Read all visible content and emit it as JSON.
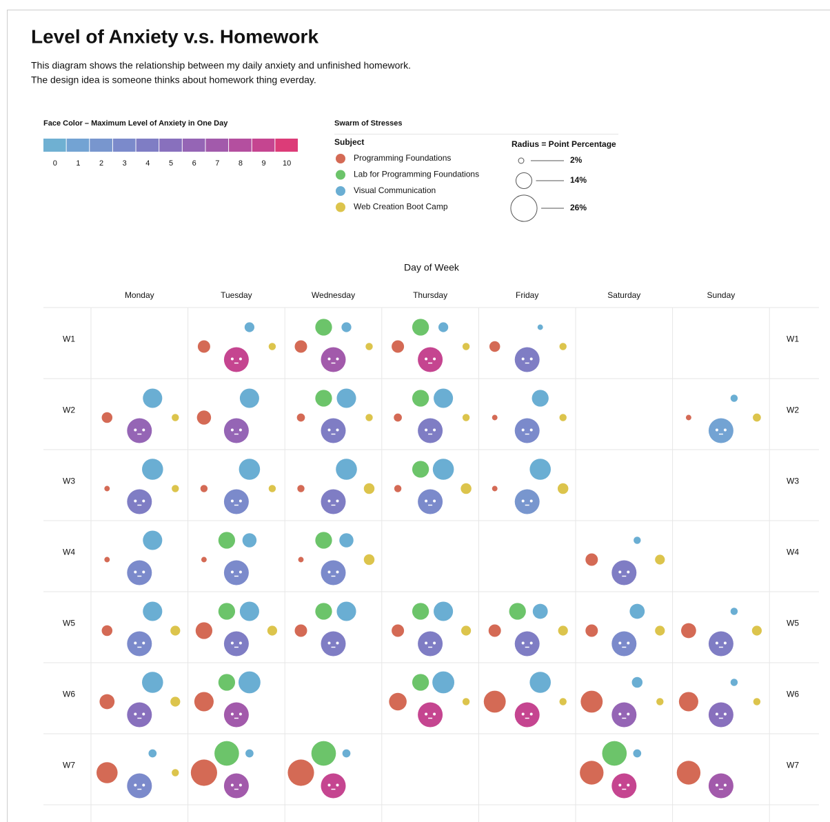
{
  "title": "Level of Anxiety v.s. Homework",
  "description": [
    "This diagram shows the relationship between my daily anxiety and unfinished homework.",
    "The design idea is someone thinks about homework thing everday."
  ],
  "color_legend": {
    "title": "Face Color – Maximum Level of Anxiety in One Day",
    "levels": [
      0,
      1,
      2,
      3,
      4,
      5,
      6,
      7,
      8,
      9,
      10
    ],
    "colors": [
      "#6fb0d2",
      "#73a3d3",
      "#7896ce",
      "#7b8acb",
      "#7f7dc4",
      "#8870bd",
      "#9565b5",
      "#a25aab",
      "#b44f9f",
      "#c54590",
      "#dc3c78"
    ]
  },
  "subject_legend": {
    "title": "Swarm of Stresses",
    "subtitle": "Subject",
    "subjects": [
      {
        "name": "Programming Foundations",
        "color": "#d46a55"
      },
      {
        "name": "Lab for Programming Foundations",
        "color": "#6cc46a"
      },
      {
        "name": "Visual Communication",
        "color": "#6aaed3"
      },
      {
        "name": "Web Creation Boot Camp",
        "color": "#dcc44c"
      }
    ],
    "size_title": "Radius = Point Percentage",
    "sizes": [
      {
        "value": 2,
        "label": "2%"
      },
      {
        "value": 14,
        "label": "14%"
      },
      {
        "value": 26,
        "label": "26%"
      }
    ]
  },
  "axis_title": "Day of Week",
  "days": [
    "Monday",
    "Tuesday",
    "Wednesday",
    "Thursday",
    "Friday",
    "Saturday",
    "Sunday"
  ],
  "weeks": [
    "W1",
    "W2",
    "W3",
    "W4",
    "W5",
    "W6",
    "W7"
  ],
  "cells": [
    [
      null,
      {
        "anxiety": 9,
        "points": [
          10,
          null,
          7,
          4
        ]
      },
      {
        "anxiety": 7,
        "points": [
          10,
          15,
          7,
          4
        ]
      },
      {
        "anxiety": 9,
        "points": [
          10,
          15,
          7,
          4
        ]
      },
      {
        "anxiety": 4,
        "points": [
          8,
          null,
          2,
          4
        ]
      },
      null,
      null
    ],
    [
      {
        "anxiety": 6,
        "points": [
          8,
          null,
          18,
          4
        ]
      },
      {
        "anxiety": 6,
        "points": [
          12,
          null,
          18,
          null
        ]
      },
      {
        "anxiety": 4,
        "points": [
          5,
          15,
          18,
          4
        ]
      },
      {
        "anxiety": 4,
        "points": [
          5,
          15,
          18,
          4
        ]
      },
      {
        "anxiety": 3,
        "points": [
          2,
          null,
          15,
          4
        ]
      },
      null,
      {
        "anxiety": 1,
        "points": [
          2,
          null,
          4,
          5
        ]
      }
    ],
    [
      {
        "anxiety": 4,
        "points": [
          2,
          null,
          20,
          4
        ]
      },
      {
        "anxiety": 3,
        "points": [
          4,
          null,
          20,
          4
        ]
      },
      {
        "anxiety": 4,
        "points": [
          4,
          null,
          20,
          8
        ]
      },
      {
        "anxiety": 3,
        "points": [
          4,
          15,
          20,
          8
        ]
      },
      {
        "anxiety": 2,
        "points": [
          2,
          null,
          20,
          8
        ]
      },
      null,
      null
    ],
    [
      {
        "anxiety": 3,
        "points": [
          2,
          null,
          18,
          null
        ]
      },
      {
        "anxiety": 3,
        "points": [
          2,
          15,
          12,
          null
        ]
      },
      {
        "anxiety": 3,
        "points": [
          2,
          15,
          12,
          8
        ]
      },
      null,
      null,
      {
        "anxiety": 4,
        "points": [
          10,
          null,
          4,
          7
        ]
      },
      null
    ],
    [
      {
        "anxiety": 3,
        "points": [
          8,
          null,
          18,
          7
        ]
      },
      {
        "anxiety": 4,
        "points": [
          15,
          15,
          18,
          7
        ]
      },
      {
        "anxiety": 4,
        "points": [
          10,
          15,
          18,
          null
        ]
      },
      {
        "anxiety": 4,
        "points": [
          10,
          15,
          18,
          7
        ]
      },
      {
        "anxiety": 4,
        "points": [
          10,
          15,
          13,
          7
        ]
      },
      {
        "anxiety": 3,
        "points": [
          10,
          null,
          13,
          7
        ]
      },
      {
        "anxiety": 4,
        "points": [
          13,
          null,
          4,
          7
        ]
      }
    ],
    [
      {
        "anxiety": 5,
        "points": [
          13,
          null,
          20,
          7
        ]
      },
      {
        "anxiety": 7,
        "points": [
          18,
          15,
          21,
          null
        ]
      },
      null,
      {
        "anxiety": 9,
        "points": [
          16,
          15,
          21,
          4
        ]
      },
      {
        "anxiety": 9,
        "points": [
          21,
          null,
          20,
          4
        ]
      },
      {
        "anxiety": 6,
        "points": [
          21,
          null,
          8,
          4
        ]
      },
      {
        "anxiety": 5,
        "points": [
          18,
          null,
          4,
          4
        ]
      }
    ],
    [
      {
        "anxiety": 3,
        "points": [
          20,
          null,
          5,
          4
        ]
      },
      {
        "anxiety": 7,
        "points": [
          26,
          24,
          5,
          null
        ]
      },
      {
        "anxiety": 9,
        "points": [
          26,
          24,
          5,
          null
        ]
      },
      null,
      null,
      {
        "anxiety": 9,
        "points": [
          23,
          24,
          5,
          null
        ]
      },
      {
        "anxiety": 7,
        "points": [
          23,
          null,
          null,
          null
        ]
      }
    ]
  ]
}
